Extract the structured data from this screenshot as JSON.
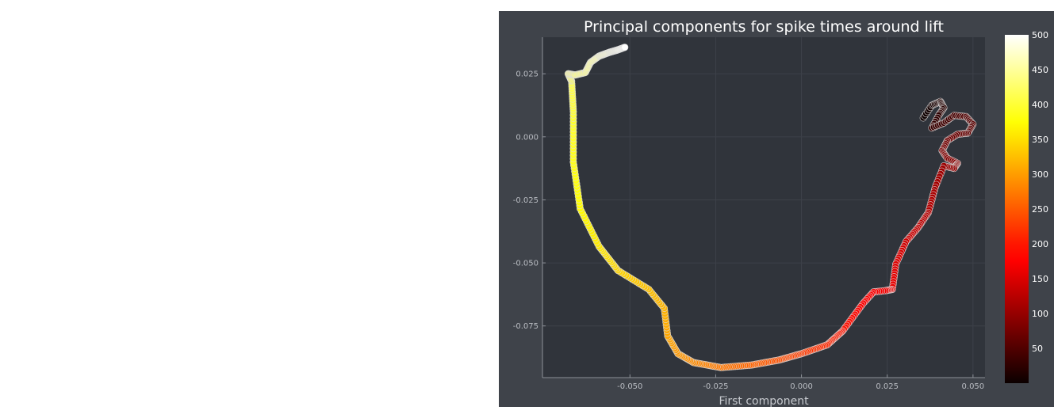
{
  "colors": {
    "figure_bg": "#3f434a",
    "plot_bg": "#30343b",
    "grid": "#3d4149",
    "axis": "#8d9198",
    "marker_stroke": "#dcdcdc"
  },
  "chart_data": {
    "type": "scatter",
    "title": "Principal components for spike times around lift",
    "xlabel": "First component",
    "ylabel": "",
    "xlim": [
      -0.0755,
      0.0535
    ],
    "ylim": [
      -0.0955,
      0.0395
    ],
    "xticks": [
      -0.05,
      -0.025,
      0.0,
      0.025,
      0.05
    ],
    "xtick_labels": [
      "-0.050",
      "-0.025",
      "0.000",
      "0.025",
      "0.050"
    ],
    "yticks": [
      0.025,
      0.0,
      -0.025,
      -0.05,
      -0.075
    ],
    "ytick_labels": [
      "0.025",
      "0.000",
      "-0.025",
      "-0.050",
      "-0.075"
    ],
    "grid": true,
    "legend": "none",
    "colorbar": {
      "colormap": "hot",
      "range": [
        0,
        500
      ],
      "ticks": [
        50,
        100,
        150,
        200,
        250,
        300,
        350,
        400,
        450,
        500
      ],
      "tick_labels": [
        "50",
        "100",
        "150",
        "200",
        "250",
        "300",
        "350",
        "400",
        "450",
        "500"
      ]
    },
    "trajectory": {
      "point_count": 500,
      "color_value": "point index",
      "path": [
        {
          "index": 0,
          "x": 0.0355,
          "y": 0.0075
        },
        {
          "index": 6,
          "x": 0.038,
          "y": 0.0125
        },
        {
          "index": 12,
          "x": 0.0405,
          "y": 0.014
        },
        {
          "index": 18,
          "x": 0.0415,
          "y": 0.0115
        },
        {
          "index": 24,
          "x": 0.04,
          "y": 0.0085
        },
        {
          "index": 30,
          "x": 0.038,
          "y": 0.0035
        },
        {
          "index": 36,
          "x": 0.0415,
          "y": 0.0055
        },
        {
          "index": 42,
          "x": 0.0445,
          "y": 0.0085
        },
        {
          "index": 48,
          "x": 0.048,
          "y": 0.008
        },
        {
          "index": 54,
          "x": 0.05,
          "y": 0.005
        },
        {
          "index": 60,
          "x": 0.0485,
          "y": 0.0015
        },
        {
          "index": 66,
          "x": 0.0455,
          "y": 0.001
        },
        {
          "index": 72,
          "x": 0.0425,
          "y": -0.0015
        },
        {
          "index": 78,
          "x": 0.041,
          "y": -0.0055
        },
        {
          "index": 84,
          "x": 0.0425,
          "y": -0.0085
        },
        {
          "index": 90,
          "x": 0.0455,
          "y": -0.0105
        },
        {
          "index": 96,
          "x": 0.0445,
          "y": -0.0125
        },
        {
          "index": 102,
          "x": 0.0415,
          "y": -0.0115
        },
        {
          "index": 110,
          "x": 0.039,
          "y": -0.02
        },
        {
          "index": 120,
          "x": 0.037,
          "y": -0.03
        },
        {
          "index": 130,
          "x": 0.034,
          "y": -0.036
        },
        {
          "index": 140,
          "x": 0.0305,
          "y": -0.0415
        },
        {
          "index": 150,
          "x": 0.0275,
          "y": -0.0505
        },
        {
          "index": 160,
          "x": 0.0265,
          "y": -0.0605
        },
        {
          "index": 166,
          "x": 0.0245,
          "y": -0.061
        },
        {
          "index": 172,
          "x": 0.021,
          "y": -0.0615
        },
        {
          "index": 180,
          "x": 0.018,
          "y": -0.066
        },
        {
          "index": 195,
          "x": 0.012,
          "y": -0.077
        },
        {
          "index": 210,
          "x": 0.0075,
          "y": -0.0825
        },
        {
          "index": 225,
          "x": 0.0,
          "y": -0.086
        },
        {
          "index": 240,
          "x": -0.0065,
          "y": -0.0885
        },
        {
          "index": 255,
          "x": -0.0145,
          "y": -0.0905
        },
        {
          "index": 270,
          "x": -0.0235,
          "y": -0.0915
        },
        {
          "index": 285,
          "x": -0.0315,
          "y": -0.0895
        },
        {
          "index": 295,
          "x": -0.036,
          "y": -0.086
        },
        {
          "index": 305,
          "x": -0.039,
          "y": -0.079
        },
        {
          "index": 315,
          "x": -0.04,
          "y": -0.068
        },
        {
          "index": 325,
          "x": -0.0445,
          "y": -0.0605
        },
        {
          "index": 340,
          "x": -0.0535,
          "y": -0.053
        },
        {
          "index": 355,
          "x": -0.059,
          "y": -0.0435
        },
        {
          "index": 370,
          "x": -0.0645,
          "y": -0.0285
        },
        {
          "index": 385,
          "x": -0.0665,
          "y": -0.01
        },
        {
          "index": 400,
          "x": -0.0665,
          "y": 0.01
        },
        {
          "index": 412,
          "x": -0.067,
          "y": 0.022
        },
        {
          "index": 420,
          "x": -0.068,
          "y": 0.025
        },
        {
          "index": 430,
          "x": -0.066,
          "y": 0.0245
        },
        {
          "index": 440,
          "x": -0.063,
          "y": 0.0255
        },
        {
          "index": 450,
          "x": -0.0615,
          "y": 0.0295
        },
        {
          "index": 460,
          "x": -0.059,
          "y": 0.032
        },
        {
          "index": 475,
          "x": -0.056,
          "y": 0.0335
        },
        {
          "index": 490,
          "x": -0.0535,
          "y": 0.0345
        },
        {
          "index": 499,
          "x": -0.0515,
          "y": 0.0355
        }
      ]
    }
  }
}
